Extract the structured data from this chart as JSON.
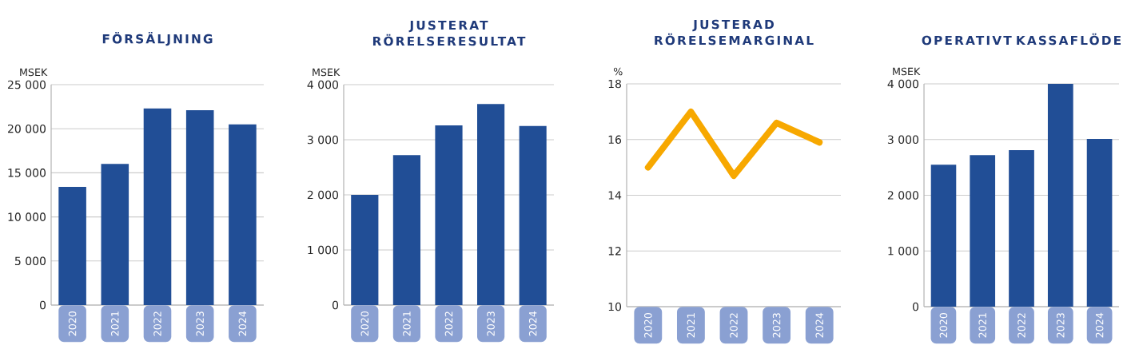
{
  "chart_data": [
    {
      "type": "bar",
      "title": "FÖRSÄLJNING",
      "ylabel": "MSEK",
      "categories": [
        "2020",
        "2021",
        "2022",
        "2023",
        "2024"
      ],
      "values": [
        13400,
        16000,
        22300,
        22100,
        20500
      ],
      "color": "#214e96",
      "ylim": [
        0,
        25000
      ],
      "yticks": [
        0,
        {
          "value": 5000,
          "label": "5 000"
        },
        {
          "value": 10000,
          "label": "10 000"
        },
        {
          "value": 15000,
          "label": "15 000"
        },
        {
          "value": 20000,
          "label": "20 000"
        },
        {
          "value": 25000,
          "label": "25 000"
        }
      ],
      "grid": "y"
    },
    {
      "type": "bar",
      "title": "JUSTERAT RÖRELSERESULTAT",
      "ylabel": "MSEK",
      "categories": [
        "2020",
        "2021",
        "2022",
        "2023",
        "2024"
      ],
      "values": [
        2000,
        2720,
        3260,
        3650,
        3250
      ],
      "color": "#214e96",
      "ylim": [
        0,
        4000
      ],
      "yticks": [
        0,
        {
          "value": 1000,
          "label": "1 000"
        },
        {
          "value": 2000,
          "label": "2 000"
        },
        {
          "value": 3000,
          "label": "3 000"
        },
        {
          "value": 4000,
          "label": "4 000"
        }
      ],
      "grid": "y"
    },
    {
      "type": "line",
      "title": "JUSTERAD RÖRELSEMARGINAL",
      "ylabel": "%",
      "categories": [
        "2020",
        "2021",
        "2022",
        "2023",
        "2024"
      ],
      "values": [
        15.0,
        17.0,
        14.7,
        16.6,
        15.9
      ],
      "color": "#f7a800",
      "ylim": [
        10,
        18
      ],
      "yticks": [
        10,
        12,
        14,
        16,
        18
      ],
      "grid": "y",
      "marker": "none"
    },
    {
      "type": "bar",
      "title": "OPERATIVT KASSAFLÖDE",
      "ylabel": "MSEK",
      "categories": [
        "2020",
        "2021",
        "2022",
        "2023",
        "2024"
      ],
      "values": [
        2550,
        2720,
        2810,
        4000,
        3010
      ],
      "color": "#214e96",
      "ylim": [
        0,
        4000
      ],
      "yticks": [
        0,
        {
          "value": 1000,
          "label": "1 000"
        },
        {
          "value": 2000,
          "label": "2 000"
        },
        {
          "value": 3000,
          "label": "3 000"
        },
        {
          "value": 4000,
          "label": "4 000"
        }
      ],
      "grid": "y"
    }
  ]
}
